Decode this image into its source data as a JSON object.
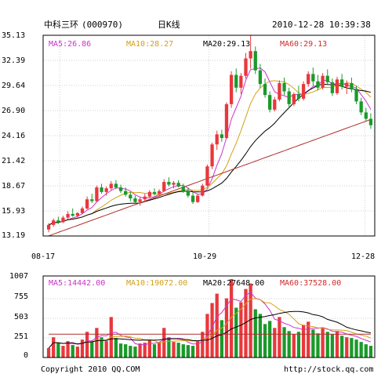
{
  "header": {
    "stock_name": "中科三环",
    "stock_code": "(000970)",
    "chart_kind": "日K线",
    "datetime": "2010-12-28 10:39:38"
  },
  "price_panel": {
    "ma_labels": [
      {
        "text": "MA5:26.86",
        "color": "#cc33cc"
      },
      {
        "text": "MA10:28.27",
        "color": "#d4a017"
      },
      {
        "text": "MA20:29.13",
        "color": "#000000"
      },
      {
        "text": "MA60:29.13",
        "color": "#d22b2b"
      }
    ],
    "y_ticks": [
      "35.13",
      "32.39",
      "29.64",
      "26.90",
      "24.16",
      "21.42",
      "18.67",
      "15.93",
      "13.19"
    ],
    "x_ticks": [
      "08-17",
      "10-29",
      "12-28"
    ]
  },
  "volume_panel": {
    "ma_labels": [
      {
        "text": "MA5:14442.00",
        "color": "#cc33cc"
      },
      {
        "text": "MA10:19072.00",
        "color": "#d4a017"
      },
      {
        "text": "MA20:27648.00",
        "color": "#000000"
      },
      {
        "text": "MA60:37528.00",
        "color": "#d22b2b"
      }
    ],
    "y_ticks": [
      "1007",
      "755",
      "503",
      "251",
      "0"
    ]
  },
  "footer": {
    "copyright": "Copyright 2010 QQ.COM",
    "url": "http://stock.qq.com"
  },
  "colors": {
    "up": "#e8383d",
    "down": "#1a9a2a",
    "ma5": "#cc33cc",
    "ma10": "#d4a017",
    "ma20": "#000000",
    "ma60": "#b03030",
    "grid": "#cfcfcf",
    "border": "#000000"
  },
  "chart_data": [
    {
      "type": "candlestick",
      "title": "中科三环(000970) 日K线",
      "x_tick_labels": [
        "08-17",
        "10-29",
        "12-28"
      ],
      "ylim": [
        13.19,
        35.13
      ],
      "grid": true,
      "series": [
        {
          "name": "MA5",
          "last": 26.86
        },
        {
          "name": "MA10",
          "last": 28.27
        },
        {
          "name": "MA20",
          "last": 29.13
        },
        {
          "name": "MA60",
          "last": 29.13
        }
      ],
      "candles": [
        [
          13.9,
          14.6,
          13.6,
          14.4
        ],
        [
          14.4,
          15.1,
          14.2,
          14.9
        ],
        [
          14.9,
          15.3,
          14.5,
          14.7
        ],
        [
          14.7,
          15.4,
          14.6,
          15.2
        ],
        [
          15.2,
          15.9,
          15.0,
          15.6
        ],
        [
          15.6,
          16.2,
          15.3,
          15.4
        ],
        [
          15.4,
          15.8,
          15.1,
          15.7
        ],
        [
          15.7,
          16.4,
          15.6,
          16.2
        ],
        [
          16.2,
          17.5,
          16.1,
          17.2
        ],
        [
          17.2,
          17.8,
          16.8,
          17.0
        ],
        [
          17.0,
          18.7,
          16.9,
          18.5
        ],
        [
          18.5,
          18.9,
          17.8,
          18.0
        ],
        [
          18.0,
          18.6,
          17.6,
          18.4
        ],
        [
          18.4,
          19.2,
          18.2,
          18.9
        ],
        [
          18.9,
          19.3,
          18.3,
          18.5
        ],
        [
          18.5,
          18.8,
          17.9,
          18.1
        ],
        [
          18.1,
          18.5,
          17.5,
          17.7
        ],
        [
          17.7,
          18.0,
          17.0,
          17.3
        ],
        [
          17.3,
          17.6,
          16.7,
          16.9
        ],
        [
          16.9,
          17.4,
          16.5,
          17.2
        ],
        [
          17.2,
          17.8,
          16.9,
          17.5
        ],
        [
          17.5,
          18.2,
          17.3,
          18.0
        ],
        [
          18.0,
          18.4,
          17.6,
          17.8
        ],
        [
          17.8,
          18.3,
          17.5,
          18.1
        ],
        [
          18.1,
          19.4,
          18.0,
          19.1
        ],
        [
          19.1,
          19.6,
          18.6,
          18.8
        ],
        [
          18.8,
          19.2,
          18.4,
          19.0
        ],
        [
          19.0,
          19.3,
          18.5,
          18.6
        ],
        [
          18.6,
          18.9,
          17.9,
          18.1
        ],
        [
          18.1,
          18.5,
          17.4,
          17.6
        ],
        [
          17.6,
          18.0,
          16.7,
          16.9
        ],
        [
          16.9,
          17.8,
          16.8,
          17.6
        ],
        [
          17.6,
          18.9,
          17.5,
          18.7
        ],
        [
          18.7,
          21.0,
          18.6,
          20.8
        ],
        [
          20.8,
          23.4,
          20.5,
          23.2
        ],
        [
          23.2,
          24.7,
          22.6,
          24.3
        ],
        [
          24.3,
          24.8,
          23.5,
          23.9
        ],
        [
          23.9,
          27.8,
          23.8,
          27.6
        ],
        [
          27.6,
          31.2,
          27.2,
          30.8
        ],
        [
          30.8,
          31.5,
          28.9,
          29.4
        ],
        [
          29.4,
          31.0,
          28.7,
          30.7
        ],
        [
          30.7,
          33.2,
          30.4,
          32.6
        ],
        [
          32.6,
          35.1,
          31.5,
          33.4
        ],
        [
          33.4,
          33.9,
          30.9,
          31.3
        ],
        [
          31.3,
          32.0,
          29.4,
          29.8
        ],
        [
          29.8,
          30.4,
          28.3,
          28.6
        ],
        [
          28.6,
          29.0,
          26.7,
          27.0
        ],
        [
          27.0,
          28.4,
          26.8,
          28.1
        ],
        [
          28.1,
          30.2,
          27.9,
          29.9
        ],
        [
          29.9,
          30.5,
          28.6,
          29.0
        ],
        [
          29.0,
          29.4,
          27.3,
          27.6
        ],
        [
          27.6,
          28.9,
          27.4,
          28.7
        ],
        [
          28.7,
          29.6,
          27.9,
          28.2
        ],
        [
          28.2,
          30.1,
          28.0,
          29.8
        ],
        [
          29.8,
          31.2,
          29.5,
          30.9
        ],
        [
          30.9,
          31.6,
          29.6,
          30.1
        ],
        [
          30.1,
          30.8,
          29.1,
          29.4
        ],
        [
          29.4,
          31.0,
          29.2,
          30.7
        ],
        [
          30.7,
          31.4,
          29.8,
          30.0
        ],
        [
          30.0,
          30.4,
          28.5,
          28.8
        ],
        [
          28.8,
          30.6,
          28.6,
          30.3
        ],
        [
          30.3,
          30.9,
          29.2,
          29.5
        ],
        [
          29.5,
          30.2,
          28.7,
          29.9
        ],
        [
          29.9,
          30.5,
          28.9,
          29.2
        ],
        [
          29.2,
          29.6,
          27.6,
          27.9
        ],
        [
          27.9,
          28.3,
          26.4,
          26.7
        ],
        [
          26.7,
          27.2,
          25.8,
          26.0
        ],
        [
          26.0,
          26.6,
          24.9,
          25.3
        ]
      ]
    },
    {
      "type": "bar",
      "title": "Volume",
      "ylim": [
        0,
        1007
      ],
      "grid": true,
      "series": [
        {
          "name": "MA5",
          "last": 14442.0
        },
        {
          "name": "MA10",
          "last": 19072.0
        },
        {
          "name": "MA20",
          "last": 27648.0
        },
        {
          "name": "MA60",
          "last": 37528.0
        }
      ],
      "values": [
        120,
        260,
        190,
        150,
        210,
        160,
        140,
        230,
        330,
        210,
        380,
        260,
        210,
        520,
        250,
        180,
        170,
        150,
        140,
        180,
        190,
        230,
        170,
        200,
        380,
        260,
        200,
        190,
        170,
        160,
        150,
        210,
        330,
        560,
        700,
        820,
        480,
        760,
        1007,
        640,
        710,
        880,
        950,
        620,
        560,
        430,
        470,
        380,
        520,
        390,
        340,
        300,
        330,
        420,
        460,
        360,
        310,
        380,
        330,
        300,
        340,
        280,
        260,
        250,
        230,
        200,
        170,
        150
      ]
    }
  ]
}
